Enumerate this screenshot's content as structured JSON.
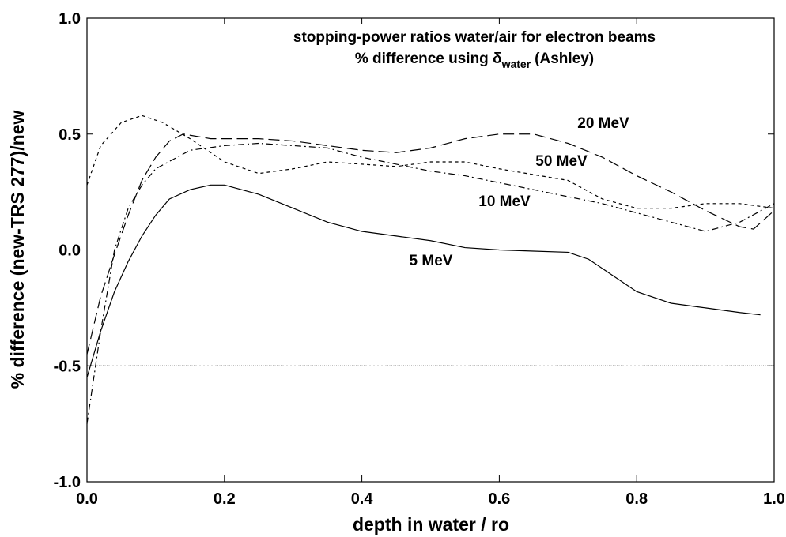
{
  "chart_data": {
    "type": "line",
    "title": "stopping-power ratios water/air for electron beams",
    "subtitle": [
      "% difference using δ",
      "water",
      "(Ashley)"
    ],
    "xlabel": "depth in water / ro",
    "ylabel": "% difference (new-TRS 277)/new",
    "xlim": [
      0,
      1
    ],
    "ylim": [
      -1,
      1
    ],
    "xticks": [
      {
        "value": 0,
        "label": "0.0"
      },
      0.2,
      0.4,
      0.6,
      0.8,
      {
        "value": 1,
        "label": "1.0"
      }
    ],
    "yticks": [
      {
        "value": -1,
        "label": "-1.0"
      },
      -0.5,
      {
        "value": 0,
        "label": "0.0"
      },
      0.5,
      {
        "value": 1,
        "label": "1.0"
      }
    ],
    "reference_lines": [
      0,
      -0.5
    ],
    "grid": false,
    "series": [
      {
        "name": "5 MeV",
        "color": "#000000",
        "linestyle": "solid",
        "x": [
          0,
          0.02,
          0.04,
          0.06,
          0.08,
          0.1,
          0.12,
          0.15,
          0.18,
          0.2,
          0.25,
          0.3,
          0.35,
          0.4,
          0.45,
          0.5,
          0.55,
          0.6,
          0.65,
          0.7,
          0.73,
          0.76,
          0.8,
          0.85,
          0.9,
          0.95,
          0.98
        ],
        "values": [
          -0.55,
          -0.35,
          -0.18,
          -0.05,
          0.06,
          0.15,
          0.22,
          0.26,
          0.28,
          0.28,
          0.24,
          0.18,
          0.12,
          0.08,
          0.06,
          0.04,
          0.01,
          0,
          -0.005,
          -0.01,
          -0.04,
          -0.1,
          -0.18,
          -0.23,
          -0.25,
          -0.27,
          -0.28
        ]
      },
      {
        "name": "10 MeV",
        "color": "#000000",
        "linestyle": "dashdot",
        "x": [
          0,
          0.01,
          0.02,
          0.04,
          0.06,
          0.08,
          0.1,
          0.15,
          0.2,
          0.25,
          0.3,
          0.35,
          0.4,
          0.45,
          0.5,
          0.55,
          0.6,
          0.65,
          0.7,
          0.75,
          0.8,
          0.85,
          0.9,
          0.95,
          1.0
        ],
        "values": [
          -0.75,
          -0.55,
          -0.35,
          0.0,
          0.18,
          0.28,
          0.35,
          0.43,
          0.45,
          0.46,
          0.45,
          0.44,
          0.4,
          0.37,
          0.34,
          0.32,
          0.29,
          0.26,
          0.23,
          0.2,
          0.16,
          0.12,
          0.08,
          0.12,
          0.2
        ]
      },
      {
        "name": "20 MeV",
        "color": "#000000",
        "linestyle": "longdash",
        "x": [
          0,
          0.02,
          0.04,
          0.06,
          0.08,
          0.1,
          0.12,
          0.14,
          0.18,
          0.25,
          0.3,
          0.35,
          0.4,
          0.45,
          0.5,
          0.55,
          0.6,
          0.65,
          0.7,
          0.75,
          0.8,
          0.85,
          0.9,
          0.95,
          0.97,
          1.0
        ],
        "values": [
          -0.45,
          -0.2,
          -0.02,
          0.15,
          0.3,
          0.4,
          0.47,
          0.5,
          0.48,
          0.48,
          0.47,
          0.45,
          0.43,
          0.42,
          0.44,
          0.48,
          0.5,
          0.5,
          0.46,
          0.4,
          0.32,
          0.25,
          0.17,
          0.1,
          0.09,
          0.17
        ]
      },
      {
        "name": "50 MeV",
        "color": "#000000",
        "linestyle": "dash",
        "x": [
          0,
          0.02,
          0.05,
          0.08,
          0.11,
          0.15,
          0.2,
          0.25,
          0.3,
          0.35,
          0.4,
          0.45,
          0.5,
          0.55,
          0.6,
          0.7,
          0.75,
          0.8,
          0.85,
          0.9,
          0.95,
          1.0
        ],
        "values": [
          0.28,
          0.45,
          0.55,
          0.58,
          0.55,
          0.48,
          0.38,
          0.33,
          0.35,
          0.38,
          0.37,
          0.36,
          0.38,
          0.38,
          0.35,
          0.3,
          0.22,
          0.18,
          0.18,
          0.2,
          0.2,
          0.18
        ]
      }
    ]
  }
}
